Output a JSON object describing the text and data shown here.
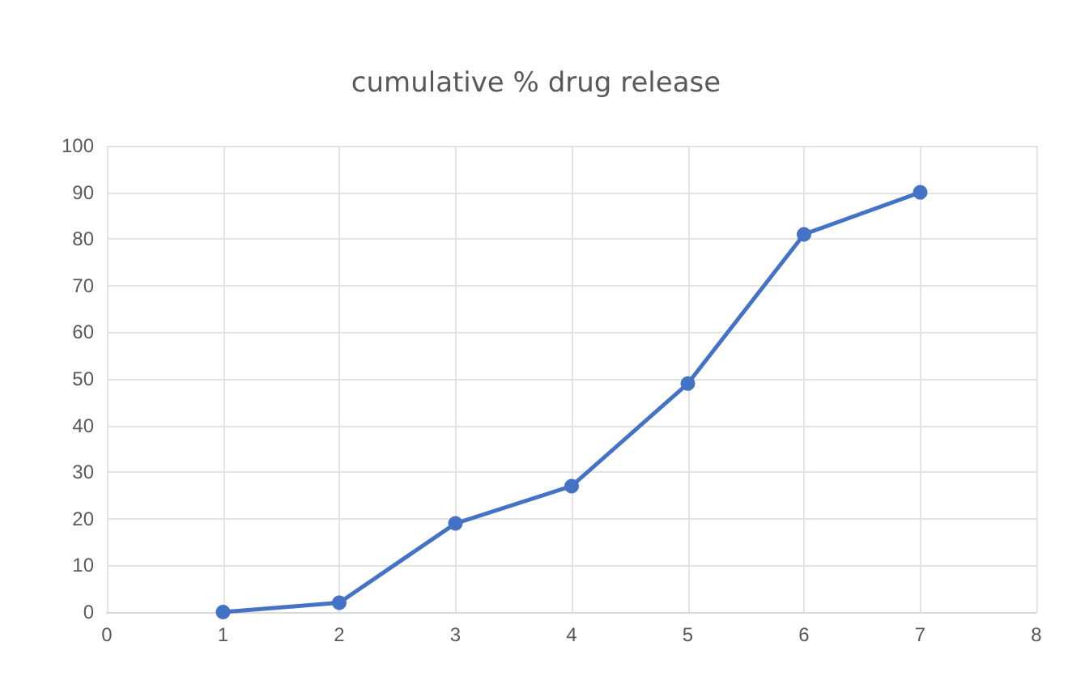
{
  "chart_data": {
    "type": "line",
    "title": "cumulative % drug release",
    "x": [
      1,
      2,
      3,
      4,
      5,
      6,
      7
    ],
    "series": [
      {
        "color": "#4472c4",
        "values": [
          0,
          2,
          19,
          27,
          49,
          81,
          90
        ]
      }
    ],
    "xlim": [
      0,
      8
    ],
    "xticks": [
      0,
      1,
      2,
      3,
      4,
      5,
      6,
      7,
      8
    ],
    "ylim": [
      0,
      100
    ],
    "yticks": [
      0,
      10,
      20,
      30,
      40,
      50,
      60,
      70,
      80,
      90,
      100
    ],
    "grid": true,
    "marker": "circle",
    "line_style": "solid"
  }
}
